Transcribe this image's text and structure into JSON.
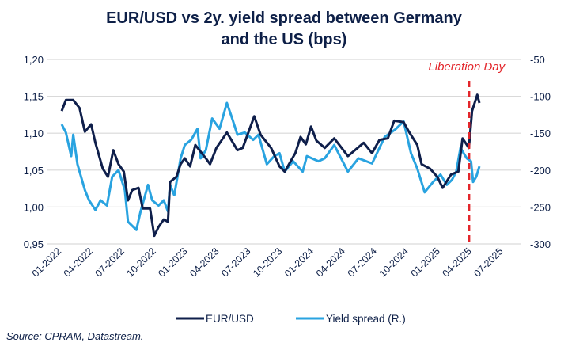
{
  "chart_data": {
    "type": "line",
    "title": "EUR/USD vs 2y. yield spread between Germany and the US (bps)",
    "title_lines": [
      "EUR/USD vs 2y. yield spread between Germany",
      "and the US (bps)"
    ],
    "source": "Source: CPRAM, Datastream.",
    "x_tick_labels": [
      "01-2022",
      "04-2022",
      "07-2022",
      "10-2022",
      "01-2023",
      "04-2023",
      "07-2023",
      "10-2023",
      "01-2024",
      "04-2024",
      "07-2024",
      "10-2024",
      "01-2025",
      "04-2025",
      "07-2025"
    ],
    "y_left": {
      "range": [
        0.95,
        1.2
      ],
      "ticks": [
        "1,20",
        "1,15",
        "1,10",
        "1,05",
        "1,00",
        "0,95"
      ]
    },
    "y_right": {
      "range": [
        -300,
        -50
      ],
      "ticks": [
        "-50",
        "-100",
        "-150",
        "-200",
        "-250",
        "-300"
      ]
    },
    "grid": "horizontal",
    "legend_position": "bottom",
    "annotation": {
      "label": "Liberation Day",
      "date": "2025-04-02",
      "color": "#e3262b"
    },
    "series": [
      {
        "name": "EUR/USD",
        "axis": "left",
        "color": "#0f1f4b",
        "x": [
          "2022-01-10",
          "2022-01-22",
          "2022-02-13",
          "2022-03-01",
          "2022-03-16",
          "2022-04-04",
          "2022-04-16",
          "2022-05-07",
          "2022-05-22",
          "2022-06-07",
          "2022-06-22",
          "2022-07-07",
          "2022-07-19",
          "2022-08-01",
          "2022-08-19",
          "2022-09-01",
          "2022-09-22",
          "2022-10-04",
          "2022-10-16",
          "2022-11-01",
          "2022-11-13",
          "2022-11-19",
          "2022-12-07",
          "2022-12-19",
          "2023-01-01",
          "2023-01-16",
          "2023-02-01",
          "2023-03-01",
          "2023-03-13",
          "2023-04-01",
          "2023-05-01",
          "2023-06-01",
          "2023-06-16",
          "2023-07-19",
          "2023-08-07",
          "2023-09-07",
          "2023-10-01",
          "2023-10-16",
          "2023-11-16",
          "2023-12-01",
          "2023-12-16",
          "2024-01-01",
          "2024-01-16",
          "2024-02-10",
          "2024-03-07",
          "2024-04-16",
          "2024-06-01",
          "2024-06-25",
          "2024-07-16",
          "2024-08-10",
          "2024-08-28",
          "2024-09-25",
          "2024-10-10",
          "2024-11-04",
          "2024-11-16",
          "2024-12-10",
          "2025-01-01",
          "2025-01-16",
          "2025-02-10",
          "2025-03-01",
          "2025-03-13",
          "2025-04-01",
          "2025-04-10",
          "2025-04-25",
          "2025-05-01"
        ],
        "values": [
          1.13,
          1.145,
          1.145,
          1.134,
          1.102,
          1.112,
          1.087,
          1.052,
          1.041,
          1.077,
          1.058,
          1.048,
          1.009,
          1.023,
          1.026,
          0.998,
          0.998,
          0.961,
          0.973,
          0.983,
          0.98,
          1.034,
          1.041,
          1.058,
          1.066,
          1.055,
          1.084,
          1.066,
          1.058,
          1.08,
          1.101,
          1.077,
          1.08,
          1.123,
          1.098,
          1.08,
          1.055,
          1.048,
          1.073,
          1.095,
          1.085,
          1.109,
          1.09,
          1.08,
          1.093,
          1.069,
          1.087,
          1.073,
          1.091,
          1.093,
          1.117,
          1.115,
          1.102,
          1.084,
          1.058,
          1.052,
          1.041,
          1.026,
          1.044,
          1.048,
          1.093,
          1.08,
          1.13,
          1.152,
          1.141
        ]
      },
      {
        "name": "Yield spread (R.)",
        "axis": "right",
        "color": "#29a3e0",
        "x": [
          "2022-01-10",
          "2022-01-22",
          "2022-02-07",
          "2022-02-13",
          "2022-02-25",
          "2022-03-16",
          "2022-03-28",
          "2022-04-16",
          "2022-05-01",
          "2022-05-19",
          "2022-06-04",
          "2022-06-22",
          "2022-07-10",
          "2022-07-19",
          "2022-08-13",
          "2022-08-25",
          "2022-09-16",
          "2022-09-28",
          "2022-10-16",
          "2022-11-01",
          "2022-11-13",
          "2022-11-19",
          "2022-12-01",
          "2022-12-19",
          "2023-01-01",
          "2023-01-19",
          "2023-02-07",
          "2023-02-16",
          "2023-03-01",
          "2023-03-19",
          "2023-04-10",
          "2023-05-01",
          "2023-05-16",
          "2023-06-01",
          "2023-06-22",
          "2023-07-16",
          "2023-08-01",
          "2023-08-25",
          "2023-09-16",
          "2023-10-01",
          "2023-10-16",
          "2023-11-10",
          "2023-12-07",
          "2023-12-19",
          "2024-01-22",
          "2024-02-10",
          "2024-03-07",
          "2024-04-16",
          "2024-05-16",
          "2024-06-25",
          "2024-08-01",
          "2024-09-01",
          "2024-09-25",
          "2024-10-16",
          "2024-11-04",
          "2024-11-25",
          "2024-12-19",
          "2025-01-10",
          "2025-01-28",
          "2025-02-13",
          "2025-02-25",
          "2025-03-07",
          "2025-03-25",
          "2025-04-07",
          "2025-04-13",
          "2025-04-22",
          "2025-05-01"
        ],
        "values": [
          -138,
          -149,
          -181,
          -152,
          -192,
          -227,
          -241,
          -254,
          -241,
          -248,
          -209,
          -200,
          -227,
          -270,
          -281,
          -256,
          -220,
          -241,
          -248,
          -241,
          -256,
          -220,
          -234,
          -184,
          -166,
          -159,
          -144,
          -184,
          -173,
          -130,
          -144,
          -109,
          -130,
          -152,
          -149,
          -159,
          -152,
          -192,
          -181,
          -177,
          -202,
          -188,
          -202,
          -181,
          -188,
          -184,
          -166,
          -202,
          -184,
          -191,
          -155,
          -145,
          -134,
          -177,
          -198,
          -230,
          -216,
          -206,
          -220,
          -213,
          -202,
          -170,
          -184,
          -188,
          -216,
          -209,
          -195
        ]
      }
    ]
  }
}
